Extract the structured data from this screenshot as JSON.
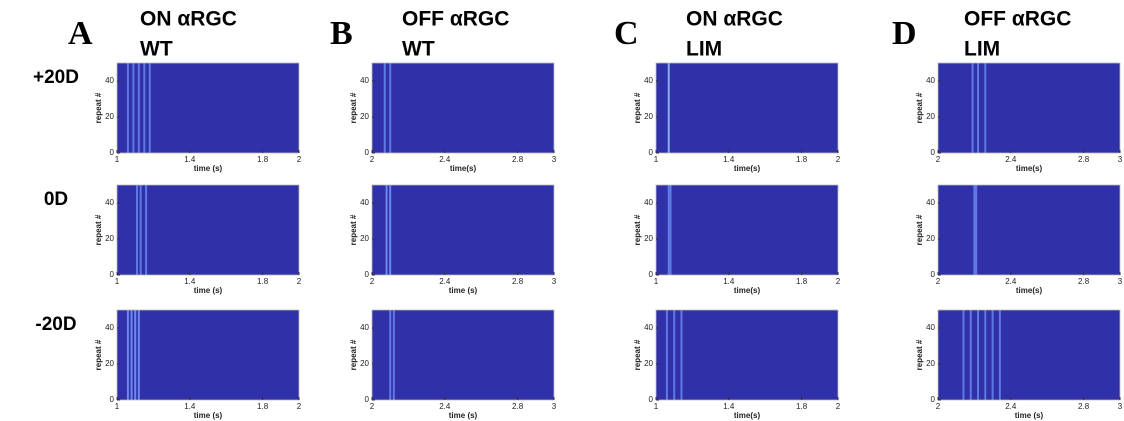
{
  "panels": [
    {
      "letter": "A",
      "title": [
        "ON αRGC",
        "WT"
      ]
    },
    {
      "letter": "B",
      "title": [
        "OFF αRGC",
        "WT"
      ]
    },
    {
      "letter": "C",
      "title": [
        "ON αRGC",
        "LIM"
      ]
    },
    {
      "letter": "D",
      "title": [
        "OFF αRGC",
        "LIM"
      ]
    }
  ],
  "rows": [
    "+20D",
    "0D",
    "-20D"
  ],
  "chart_data": [
    {
      "type": "raster",
      "xlabel": "time (s)",
      "ylabel": "repeat #",
      "xlim": [
        1,
        2
      ],
      "xticks": [
        1,
        1.4,
        1.8,
        2
      ],
      "ylim": [
        0,
        50
      ],
      "yticks": [
        0,
        20,
        40
      ],
      "x": [
        1.06,
        1.09,
        1.12,
        1.15,
        1.18
      ],
      "color": "#3030a8",
      "stripe_color": "#6a8cf0"
    },
    {
      "type": "raster",
      "xlabel": "time(s)",
      "ylabel": "repeat #",
      "xlim": [
        2,
        3
      ],
      "xticks": [
        2,
        2.4,
        2.8,
        3
      ],
      "ylim": [
        0,
        50
      ],
      "yticks": [
        0,
        20,
        40
      ],
      "x": [
        2.07,
        2.1
      ],
      "color": "#3030a8",
      "stripe_color": "#6a8cf0"
    },
    {
      "type": "raster",
      "xlabel": "time(s)",
      "ylabel": "repeat #",
      "xlim": [
        1,
        2
      ],
      "xticks": [
        1,
        1.4,
        1.8,
        2
      ],
      "ylim": [
        0,
        50
      ],
      "yticks": [
        0,
        20,
        40
      ],
      "x": [
        1.07
      ],
      "color": "#3030a8",
      "stripe_color": "#9ad0ff"
    },
    {
      "type": "raster",
      "xlabel": "time(s)",
      "ylabel": "repeat #",
      "xlim": [
        2,
        3
      ],
      "xticks": [
        2,
        2.4,
        2.8,
        3
      ],
      "ylim": [
        0,
        50
      ],
      "yticks": [
        0,
        20,
        40
      ],
      "x": [
        2.19,
        2.22,
        2.26
      ],
      "color": "#3030a8",
      "stripe_color": "#6a8cf0"
    },
    {
      "type": "raster",
      "xlabel": "time (s)",
      "ylabel": "repeat #",
      "xlim": [
        1,
        2
      ],
      "xticks": [
        1,
        1.4,
        1.8,
        2
      ],
      "ylim": [
        0,
        50
      ],
      "yticks": [
        0,
        20,
        40
      ],
      "x": [
        1.11,
        1.13,
        1.16
      ],
      "color": "#3030a8",
      "stripe_color": "#6a8cf0"
    },
    {
      "type": "raster",
      "xlabel": "time (s)",
      "ylabel": "repeat #",
      "xlim": [
        2,
        3
      ],
      "xticks": [
        2,
        2.4,
        2.8,
        3
      ],
      "ylim": [
        0,
        50
      ],
      "yticks": [
        0,
        20,
        40
      ],
      "x": [
        2.08,
        2.1
      ],
      "color": "#3030a8",
      "stripe_color": "#7aa0ff"
    },
    {
      "type": "raster",
      "xlabel": "time(s)",
      "ylabel": "repeat #",
      "xlim": [
        1,
        2
      ],
      "xticks": [
        1,
        1.4,
        1.8,
        2
      ],
      "ylim": [
        0,
        50
      ],
      "yticks": [
        0,
        20,
        40
      ],
      "x": [
        1.07,
        1.08
      ],
      "color": "#3030a8",
      "stripe_color": "#6a8cf0"
    },
    {
      "type": "raster",
      "xlabel": "time(s)",
      "ylabel": "repeat #",
      "xlim": [
        2,
        3
      ],
      "xticks": [
        2,
        2.4,
        2.8,
        3
      ],
      "ylim": [
        0,
        50
      ],
      "yticks": [
        0,
        20,
        40
      ],
      "x": [
        2.2,
        2.21
      ],
      "color": "#3030a8",
      "stripe_color": "#6a8cf0"
    },
    {
      "type": "raster",
      "xlabel": "time (s)",
      "ylabel": "repeat #",
      "xlim": [
        1,
        2
      ],
      "xticks": [
        1,
        1.4,
        1.8,
        2
      ],
      "ylim": [
        0,
        50
      ],
      "yticks": [
        0,
        20,
        40
      ],
      "x": [
        1.06,
        1.08,
        1.1,
        1.12
      ],
      "color": "#3030a8",
      "stripe_color": "#7aa0ff"
    },
    {
      "type": "raster",
      "xlabel": "time (s)",
      "ylabel": "repeat #",
      "xlim": [
        2,
        3
      ],
      "xticks": [
        2,
        2.4,
        2.8,
        3
      ],
      "ylim": [
        0,
        50
      ],
      "yticks": [
        0,
        20,
        40
      ],
      "x": [
        2.1,
        2.12
      ],
      "color": "#3030a8",
      "stripe_color": "#6a8cf0"
    },
    {
      "type": "raster",
      "xlabel": "time(s)",
      "ylabel": "repeat #",
      "xlim": [
        1,
        2
      ],
      "xticks": [
        1,
        1.4,
        1.8,
        2
      ],
      "ylim": [
        0,
        50
      ],
      "yticks": [
        0,
        20,
        40
      ],
      "x": [
        1.06,
        1.1,
        1.14
      ],
      "color": "#3030a8",
      "stripe_color": "#6a8cf0"
    },
    {
      "type": "raster",
      "xlabel": "time (s)",
      "ylabel": "repeat #",
      "xlim": [
        2,
        3
      ],
      "xticks": [
        2,
        2.4,
        2.8,
        3
      ],
      "ylim": [
        0,
        50
      ],
      "yticks": [
        0,
        20,
        40
      ],
      "x": [
        2.14,
        2.18,
        2.22,
        2.26,
        2.3,
        2.34
      ],
      "color": "#3030a8",
      "stripe_color": "#6a8cf0"
    }
  ]
}
